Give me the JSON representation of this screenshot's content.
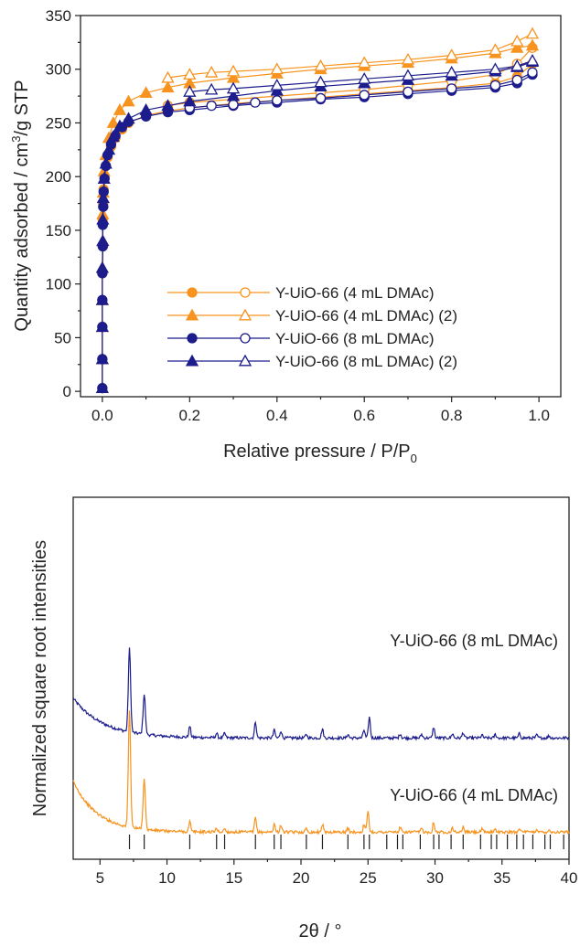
{
  "colors": {
    "orange": "#f7931e",
    "navy": "#1c1c8c",
    "axis": "#222222"
  },
  "chart_data": [
    {
      "type": "scatter",
      "title": "",
      "xlabel": "Relative pressure / P/P",
      "xlabel_subscript": "0",
      "ylabel": "Quantity adsorbed / cm",
      "ylabel_superscript": "3",
      "ylabel_tail": "/g STP",
      "xlim": [
        -0.05,
        1.05
      ],
      "ylim": [
        -5,
        350
      ],
      "xticks": [
        "0.0",
        "0.2",
        "0.4",
        "0.6",
        "0.8",
        "1.0"
      ],
      "yticks": [
        "0",
        "50",
        "100",
        "150",
        "200",
        "250",
        "300",
        "350"
      ],
      "legend_position": "bottom-right",
      "series": [
        {
          "name": "Y-UiO-66 (4 mL DMAc)",
          "color": "#f7931e",
          "marker": "circle",
          "adsorption": [
            [
              0.0,
              3
            ],
            [
              0.0,
              30
            ],
            [
              0.0,
              60
            ],
            [
              0.0,
              85
            ],
            [
              0.0,
              110
            ],
            [
              0.001,
              135
            ],
            [
              0.001,
              160
            ],
            [
              0.002,
              175
            ],
            [
              0.003,
              188
            ],
            [
              0.005,
              200
            ],
            [
              0.008,
              210
            ],
            [
              0.012,
              218
            ],
            [
              0.02,
              228
            ],
            [
              0.03,
              236
            ],
            [
              0.045,
              244
            ],
            [
              0.06,
              250
            ],
            [
              0.1,
              257
            ],
            [
              0.15,
              261
            ],
            [
              0.2,
              264
            ],
            [
              0.3,
              268
            ],
            [
              0.4,
              271
            ],
            [
              0.5,
              274
            ],
            [
              0.6,
              277
            ],
            [
              0.7,
              280
            ],
            [
              0.8,
              283
            ],
            [
              0.9,
              287
            ],
            [
              0.95,
              293
            ],
            [
              0.985,
              305
            ]
          ],
          "desorption": [
            [
              0.985,
              320
            ],
            [
              0.95,
              305
            ],
            [
              0.9,
              295
            ],
            [
              0.8,
              289
            ],
            [
              0.7,
              285
            ],
            [
              0.6,
              281
            ],
            [
              0.5,
              278
            ],
            [
              0.4,
              275
            ],
            [
              0.3,
              272
            ],
            [
              0.2,
              269
            ],
            [
              0.15,
              266
            ]
          ]
        },
        {
          "name": "Y-UiO-66 (4 mL DMAc) (2)",
          "color": "#f7931e",
          "marker": "triangle",
          "adsorption": [
            [
              0.0,
              3
            ],
            [
              0.0,
              30
            ],
            [
              0.0,
              60
            ],
            [
              0.0,
              85
            ],
            [
              0.0,
              115
            ],
            [
              0.001,
              140
            ],
            [
              0.001,
              165
            ],
            [
              0.002,
              185
            ],
            [
              0.004,
              205
            ],
            [
              0.008,
              220
            ],
            [
              0.015,
              236
            ],
            [
              0.025,
              250
            ],
            [
              0.04,
              262
            ],
            [
              0.06,
              270
            ],
            [
              0.1,
              278
            ],
            [
              0.15,
              283
            ],
            [
              0.2,
              287
            ],
            [
              0.3,
              292
            ],
            [
              0.4,
              296
            ],
            [
              0.5,
              300
            ],
            [
              0.6,
              303
            ],
            [
              0.7,
              306
            ],
            [
              0.8,
              310
            ],
            [
              0.9,
              315
            ],
            [
              0.95,
              320
            ],
            [
              0.985,
              322
            ]
          ],
          "desorption": [
            [
              0.985,
              333
            ],
            [
              0.95,
              326
            ],
            [
              0.9,
              318
            ],
            [
              0.8,
              313
            ],
            [
              0.7,
              309
            ],
            [
              0.6,
              306
            ],
            [
              0.5,
              303
            ],
            [
              0.4,
              300
            ],
            [
              0.3,
              298
            ],
            [
              0.25,
              297
            ],
            [
              0.2,
              295
            ],
            [
              0.15,
              292
            ]
          ]
        },
        {
          "name": "Y-UiO-66 (8 mL DMAc)",
          "color": "#1c1c8c",
          "marker": "circle",
          "adsorption": [
            [
              0.0,
              3
            ],
            [
              0.0,
              30
            ],
            [
              0.0,
              60
            ],
            [
              0.0,
              85
            ],
            [
              0.0,
              110
            ],
            [
              0.001,
              135
            ],
            [
              0.001,
              155
            ],
            [
              0.002,
              172
            ],
            [
              0.003,
              186
            ],
            [
              0.005,
              198
            ],
            [
              0.008,
              210
            ],
            [
              0.012,
              220
            ],
            [
              0.02,
              230
            ],
            [
              0.03,
              238
            ],
            [
              0.045,
              246
            ],
            [
              0.06,
              251
            ],
            [
              0.1,
              256
            ],
            [
              0.15,
              260
            ],
            [
              0.2,
              262
            ],
            [
              0.3,
              266
            ],
            [
              0.4,
              269
            ],
            [
              0.5,
              272
            ],
            [
              0.6,
              274
            ],
            [
              0.7,
              277
            ],
            [
              0.8,
              280
            ],
            [
              0.9,
              283
            ],
            [
              0.95,
              287
            ],
            [
              0.985,
              295
            ]
          ],
          "desorption": [
            [
              0.985,
              297
            ],
            [
              0.95,
              290
            ],
            [
              0.9,
              285
            ],
            [
              0.8,
              282
            ],
            [
              0.7,
              279
            ],
            [
              0.6,
              276
            ],
            [
              0.5,
              273
            ],
            [
              0.4,
              271
            ],
            [
              0.35,
              269
            ],
            [
              0.3,
              267
            ],
            [
              0.25,
              266
            ],
            [
              0.2,
              264
            ]
          ]
        },
        {
          "name": "Y-UiO-66 (8 mL DMAc) (2)",
          "color": "#1c1c8c",
          "marker": "triangle",
          "adsorption": [
            [
              0.0,
              3
            ],
            [
              0.0,
              30
            ],
            [
              0.0,
              60
            ],
            [
              0.0,
              85
            ],
            [
              0.0,
              115
            ],
            [
              0.001,
              140
            ],
            [
              0.001,
              160
            ],
            [
              0.002,
              180
            ],
            [
              0.004,
              198
            ],
            [
              0.008,
              212
            ],
            [
              0.015,
              225
            ],
            [
              0.025,
              237
            ],
            [
              0.04,
              247
            ],
            [
              0.06,
              254
            ],
            [
              0.1,
              262
            ],
            [
              0.15,
              266
            ],
            [
              0.2,
              270
            ],
            [
              0.3,
              275
            ],
            [
              0.4,
              280
            ],
            [
              0.5,
              284
            ],
            [
              0.6,
              287
            ],
            [
              0.7,
              290
            ],
            [
              0.8,
              294
            ],
            [
              0.9,
              298
            ],
            [
              0.95,
              302
            ],
            [
              0.985,
              307
            ]
          ],
          "desorption": [
            [
              0.985,
              308
            ],
            [
              0.95,
              303
            ],
            [
              0.9,
              300
            ],
            [
              0.8,
              297
            ],
            [
              0.7,
              294
            ],
            [
              0.6,
              291
            ],
            [
              0.5,
              288
            ],
            [
              0.4,
              285
            ],
            [
              0.3,
              282
            ],
            [
              0.25,
              281
            ],
            [
              0.2,
              279
            ]
          ]
        }
      ]
    },
    {
      "type": "line",
      "title": "",
      "xlabel": "2θ / °",
      "ylabel": "Normalized square root intensities",
      "xlim": [
        3,
        40
      ],
      "ylim": [
        0,
        1
      ],
      "yticks_shown": false,
      "xticks": [
        "5",
        "10",
        "15",
        "20",
        "25",
        "30",
        "35",
        "40"
      ],
      "series": [
        {
          "name": "Y-UiO-66 (8 mL DMAc)",
          "color": "#1c1c8c",
          "baseline": 0.335,
          "background": {
            "amplitude": 0.11,
            "decay": 0.45
          },
          "peaks": [
            [
              7.2,
              0.23
            ],
            [
              8.3,
              0.11
            ],
            [
              11.7,
              0.03
            ],
            [
              13.7,
              0.012
            ],
            [
              14.3,
              0.012
            ],
            [
              16.6,
              0.045
            ],
            [
              18.0,
              0.022
            ],
            [
              18.5,
              0.02
            ],
            [
              20.4,
              0.01
            ],
            [
              21.6,
              0.025
            ],
            [
              23.5,
              0.01
            ],
            [
              24.7,
              0.022
            ],
            [
              25.1,
              0.058
            ],
            [
              27.4,
              0.012
            ],
            [
              29.0,
              0.01
            ],
            [
              29.9,
              0.03
            ],
            [
              31.3,
              0.012
            ],
            [
              32.1,
              0.015
            ],
            [
              33.5,
              0.008
            ],
            [
              34.5,
              0.01
            ],
            [
              36.3,
              0.012
            ],
            [
              37.6,
              0.008
            ],
            [
              38.5,
              0.006
            ]
          ]
        },
        {
          "name": "Y-UiO-66 (4 mL DMAc)",
          "color": "#f7931e",
          "baseline": 0.075,
          "background": {
            "amplitude": 0.14,
            "decay": 0.55
          },
          "peaks": [
            [
              7.2,
              0.32
            ],
            [
              8.3,
              0.14
            ],
            [
              11.7,
              0.028
            ],
            [
              13.7,
              0.01
            ],
            [
              14.3,
              0.01
            ],
            [
              16.6,
              0.04
            ],
            [
              18.0,
              0.022
            ],
            [
              18.5,
              0.02
            ],
            [
              20.4,
              0.01
            ],
            [
              21.6,
              0.022
            ],
            [
              23.5,
              0.01
            ],
            [
              24.7,
              0.02
            ],
            [
              25.0,
              0.06
            ],
            [
              27.4,
              0.012
            ],
            [
              29.0,
              0.01
            ],
            [
              29.9,
              0.028
            ],
            [
              31.3,
              0.012
            ],
            [
              32.1,
              0.014
            ],
            [
              33.5,
              0.008
            ],
            [
              34.5,
              0.01
            ],
            [
              36.3,
              0.012
            ],
            [
              37.6,
              0.008
            ],
            [
              38.5,
              0.006
            ]
          ]
        }
      ],
      "reference_ticks": [
        7.2,
        8.3,
        11.7,
        13.7,
        14.3,
        16.6,
        18.0,
        18.5,
        20.4,
        21.6,
        23.5,
        24.7,
        25.1,
        26.4,
        27.2,
        27.6,
        28.9,
        29.9,
        30.3,
        31.2,
        32.1,
        33.4,
        34.2,
        34.6,
        35.4,
        36.1,
        36.6,
        37.3,
        38.2,
        38.6,
        39.6
      ]
    }
  ]
}
